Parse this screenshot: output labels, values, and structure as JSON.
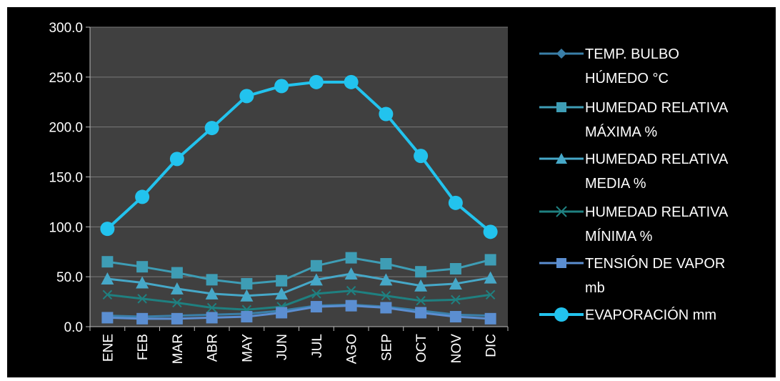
{
  "chart_data": {
    "type": "line",
    "categories": [
      "ENE",
      "FEB",
      "MAR",
      "ABR",
      "MAY",
      "JUN",
      "JUL",
      "AGO",
      "SEP",
      "OCT",
      "NOV",
      "DIC"
    ],
    "ylim": [
      0,
      300
    ],
    "yticks": [
      "0.0",
      "50.0",
      "100.0",
      "150.0",
      "200.0",
      "250.0",
      "300.0"
    ],
    "ytick_values": [
      0,
      50,
      100,
      150,
      200,
      250,
      300
    ],
    "grid": true,
    "legend_position": "right",
    "plot_background": "#404040",
    "series": [
      {
        "name_lines": [
          "TEMP. BULBO",
          "HÚMEDO °C"
        ],
        "marker": "diamond",
        "color": "#3A7FA8",
        "values": [
          11,
          10,
          11,
          12,
          13,
          16,
          21,
          22,
          20,
          16,
          12,
          11
        ]
      },
      {
        "name_lines": [
          "HUMEDAD RELATIVA",
          "MÁXIMA %"
        ],
        "marker": "square",
        "color": "#3E9DB5",
        "values": [
          65,
          60,
          54,
          47,
          43,
          46,
          61,
          69,
          63,
          55,
          58,
          67
        ]
      },
      {
        "name_lines": [
          "HUMEDAD RELATIVA",
          "MEDIA %"
        ],
        "marker": "triangle",
        "color": "#46A8C8",
        "values": [
          48,
          44,
          38,
          33,
          31,
          33,
          47,
          53,
          47,
          41,
          43,
          49
        ]
      },
      {
        "name_lines": [
          "HUMEDAD RELATIVA",
          "MÍNIMA %"
        ],
        "marker": "x",
        "color": "#1F8080",
        "values": [
          32,
          28,
          24,
          19,
          17,
          20,
          33,
          36,
          31,
          26,
          27,
          32
        ]
      },
      {
        "name_lines": [
          "TENSIÓN DE VAPOR",
          "mb"
        ],
        "marker": "square",
        "color": "#5B8ED1",
        "values": [
          9,
          8,
          8,
          9,
          10,
          14,
          20,
          21,
          19,
          14,
          10,
          8
        ]
      },
      {
        "name_lines": [
          "EVAPORACIÓN  mm"
        ],
        "marker": "circle",
        "color": "#22C3EE",
        "values": [
          98,
          130,
          168,
          199,
          231,
          241,
          245,
          245,
          213,
          171,
          124,
          95
        ]
      }
    ]
  }
}
